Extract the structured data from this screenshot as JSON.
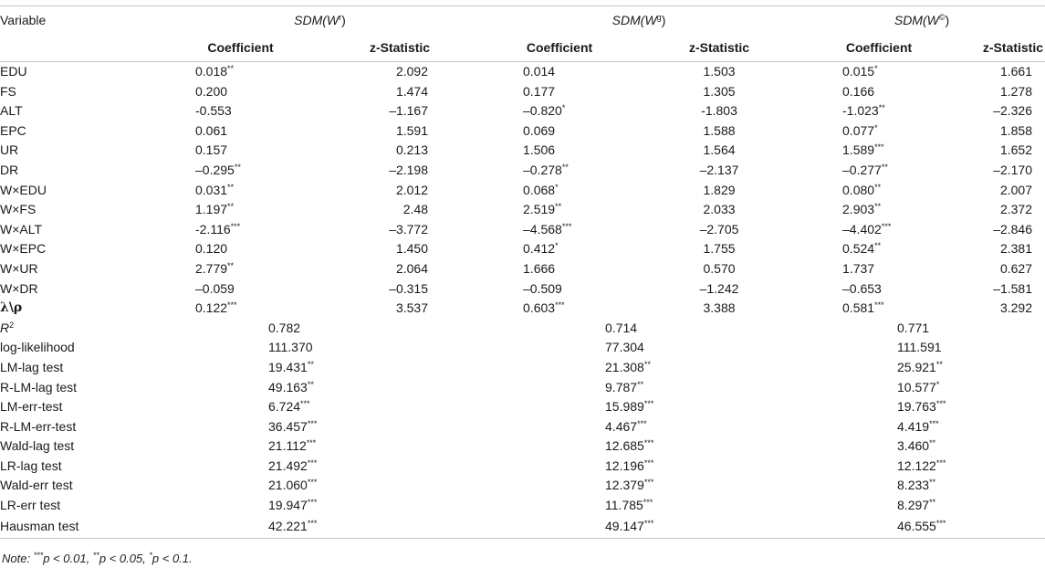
{
  "table": {
    "header_variable": "Variable",
    "models": [
      {
        "label": "SDM(W",
        "sup": "r",
        "close": ")"
      },
      {
        "label": "SDM(W",
        "sup": "g",
        "close": ")"
      },
      {
        "label": "SDM(W",
        "sup": "©",
        "close": ")"
      }
    ],
    "col_coefficient": "Coefficient",
    "col_zstat": "z-Statistic",
    "rows": [
      {
        "label": "EDU",
        "c": [
          {
            "v": "0.018",
            "s": "**"
          },
          {
            "v": "2.092"
          },
          {
            "v": "0.014"
          },
          {
            "v": "1.503"
          },
          {
            "v": "0.015",
            "s": "*"
          },
          {
            "v": "1.661"
          }
        ]
      },
      {
        "label": "FS",
        "c": [
          {
            "v": "0.200"
          },
          {
            "v": "1.474"
          },
          {
            "v": "0.177"
          },
          {
            "v": "1.305"
          },
          {
            "v": "0.166"
          },
          {
            "v": "1.278"
          }
        ]
      },
      {
        "label": "ALT",
        "c": [
          {
            "v": "-0.553"
          },
          {
            "v": "–1.167"
          },
          {
            "v": "–0.820",
            "s": "*"
          },
          {
            "v": "-1.803"
          },
          {
            "v": "-1.023",
            "s": "**"
          },
          {
            "v": "–2.326"
          }
        ]
      },
      {
        "label": "EPC",
        "c": [
          {
            "v": "0.061"
          },
          {
            "v": "1.591"
          },
          {
            "v": "0.069"
          },
          {
            "v": "1.588"
          },
          {
            "v": "0.077",
            "s": "*"
          },
          {
            "v": "1.858"
          }
        ]
      },
      {
        "label": "UR",
        "c": [
          {
            "v": "0.157"
          },
          {
            "v": "0.213"
          },
          {
            "v": "1.506"
          },
          {
            "v": "1.564"
          },
          {
            "v": "1.589",
            "s": "***"
          },
          {
            "v": "1.652"
          }
        ]
      },
      {
        "label": "DR",
        "c": [
          {
            "v": "–0.295",
            "s": "**"
          },
          {
            "v": "–2.198"
          },
          {
            "v": "–0.278",
            "s": "**"
          },
          {
            "v": "–2.137"
          },
          {
            "v": "–0.277",
            "s": "**"
          },
          {
            "v": "–2.170"
          }
        ]
      },
      {
        "label": "W×EDU",
        "c": [
          {
            "v": "0.031",
            "s": "**"
          },
          {
            "v": "2.012"
          },
          {
            "v": "0.068",
            "s": "*"
          },
          {
            "v": "1.829"
          },
          {
            "v": "0.080",
            "s": "**"
          },
          {
            "v": "2.007"
          }
        ]
      },
      {
        "label": "W×FS",
        "c": [
          {
            "v": "1.197",
            "s": "**"
          },
          {
            "v": "2.48"
          },
          {
            "v": "2.519",
            "s": "**"
          },
          {
            "v": "2.033"
          },
          {
            "v": "2.903",
            "s": "**"
          },
          {
            "v": "2.372"
          }
        ]
      },
      {
        "label": "W×ALT",
        "c": [
          {
            "v": "-2.116",
            "s": "***"
          },
          {
            "v": "–3.772"
          },
          {
            "v": "–4.568",
            "s": "***"
          },
          {
            "v": "–2.705"
          },
          {
            "v": "–4.402",
            "s": "***"
          },
          {
            "v": "–2.846"
          }
        ]
      },
      {
        "label": "W×EPC",
        "c": [
          {
            "v": "0.120"
          },
          {
            "v": "1.450"
          },
          {
            "v": "0.412",
            "s": "*"
          },
          {
            "v": "1.755"
          },
          {
            "v": "0.524",
            "s": "**"
          },
          {
            "v": "2.381"
          }
        ]
      },
      {
        "label": "W×UR",
        "c": [
          {
            "v": "2.779",
            "s": "**"
          },
          {
            "v": "2.064"
          },
          {
            "v": "1.666"
          },
          {
            "v": "0.570"
          },
          {
            "v": "1.737"
          },
          {
            "v": "0.627"
          }
        ]
      },
      {
        "label": "W×DR",
        "c": [
          {
            "v": "–0.059"
          },
          {
            "v": "–0.315"
          },
          {
            "v": "–0.509"
          },
          {
            "v": "–1.242"
          },
          {
            "v": "–0.653"
          },
          {
            "v": "–1.581"
          }
        ]
      },
      {
        "label": "λ\\ρ",
        "c": [
          {
            "v": "0.122",
            "s": "***"
          },
          {
            "v": "3.537"
          },
          {
            "v": "0.603",
            "s": "***"
          },
          {
            "v": "3.388"
          },
          {
            "v": "0.581",
            "s": "***"
          },
          {
            "v": "3.292"
          }
        ]
      }
    ],
    "stats_rows": [
      {
        "label": "R",
        "label_sup": "2",
        "v": [
          {
            "v": "0.782"
          },
          {
            "v": "0.714"
          },
          {
            "v": "0.771"
          }
        ]
      },
      {
        "label": "log-likelihood",
        "v": [
          {
            "v": "111.370"
          },
          {
            "v": "77.304"
          },
          {
            "v": "111.591"
          }
        ]
      },
      {
        "label": "LM-lag test",
        "v": [
          {
            "v": "19.431",
            "s": "**"
          },
          {
            "v": "21.308",
            "s": "**"
          },
          {
            "v": "25.921",
            "s": "**"
          }
        ]
      },
      {
        "label": "R-LM-lag test",
        "v": [
          {
            "v": "49.163",
            "s": "**"
          },
          {
            "v": "9.787",
            "s": "**"
          },
          {
            "v": "10.577",
            "s": "*"
          }
        ]
      },
      {
        "label": "LM-err-test",
        "v": [
          {
            "v": "6.724",
            "s": "***"
          },
          {
            "v": "15.989",
            "s": "***"
          },
          {
            "v": "19.763",
            "s": "***"
          }
        ]
      },
      {
        "label": "R-LM-err-test",
        "v": [
          {
            "v": "36.457",
            "s": "***"
          },
          {
            "v": "4.467",
            "s": "***"
          },
          {
            "v": "4.419",
            "s": "***"
          }
        ]
      },
      {
        "label": "Wald-lag test",
        "v": [
          {
            "v": "21.112",
            "s": "***"
          },
          {
            "v": "12.685",
            "s": "***"
          },
          {
            "v": "3.460",
            "s": "**"
          }
        ]
      },
      {
        "label": "LR-lag test",
        "v": [
          {
            "v": "21.492",
            "s": "***"
          },
          {
            "v": "12.196",
            "s": "***"
          },
          {
            "v": "12.122",
            "s": "***"
          }
        ]
      },
      {
        "label": "Wald-err test",
        "v": [
          {
            "v": "21.060",
            "s": "***"
          },
          {
            "v": "12.379",
            "s": "***"
          },
          {
            "v": "8.233",
            "s": "**"
          }
        ]
      },
      {
        "label": "LR-err test",
        "v": [
          {
            "v": "19.947",
            "s": "***"
          },
          {
            "v": "11.785",
            "s": "***"
          },
          {
            "v": "8.297",
            "s": "**"
          }
        ]
      },
      {
        "label": "Hausman test",
        "v": [
          {
            "v": "42.221",
            "s": "***"
          },
          {
            "v": "49.147",
            "s": "***"
          },
          {
            "v": "46.555",
            "s": "***"
          }
        ]
      }
    ],
    "note": {
      "lead": "Note:",
      "parts": [
        {
          "s": "***",
          "t": "p < 0.01, "
        },
        {
          "s": "**",
          "t": "p < 0.05, "
        },
        {
          "s": "*",
          "t": "p < 0.1."
        }
      ]
    }
  }
}
